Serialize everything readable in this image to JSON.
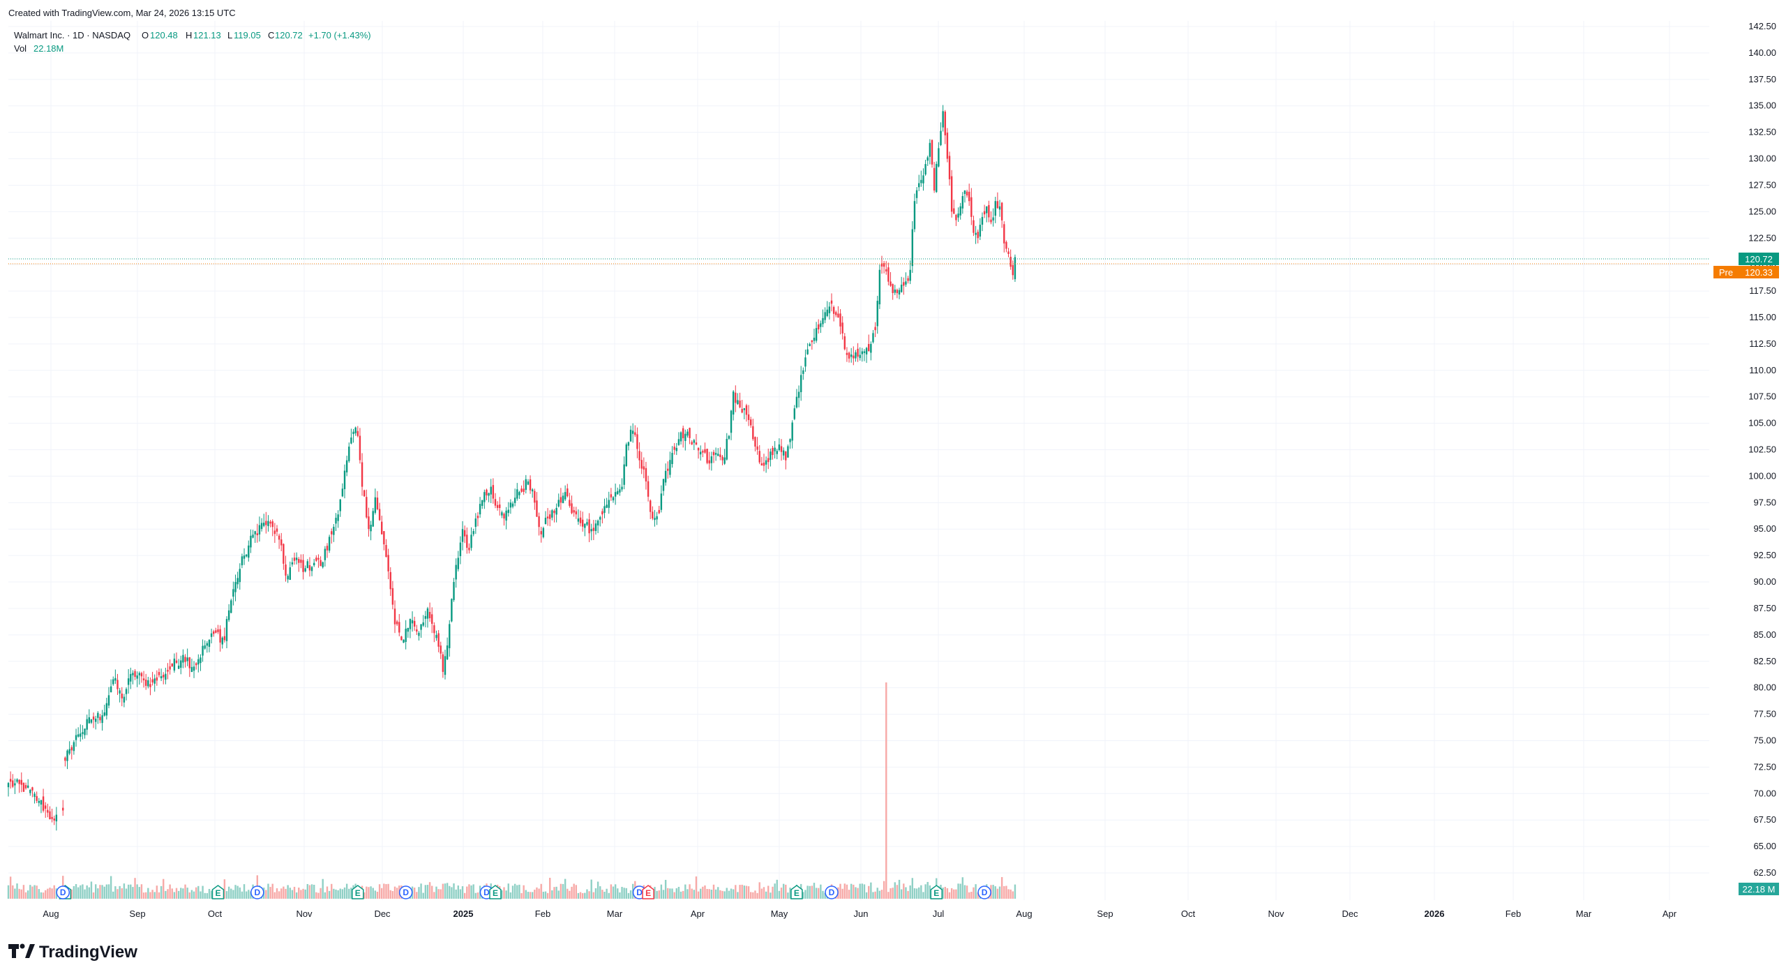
{
  "header": {
    "created": "Created with TradingView.com, Mar 24, 2026 13:15 UTC",
    "symbol": "Walmart Inc. · 1D · NASDAQ",
    "o_label": "O",
    "o_value": "120.48",
    "h_label": "H",
    "h_value": "121.13",
    "l_label": "L",
    "l_value": "119.05",
    "c_label": "C",
    "c_value": "120.72",
    "change": "+1.70 (+1.43%)",
    "vol_label": "Vol",
    "vol_value": "22.18M"
  },
  "branding": {
    "logo_text": "TradingView"
  },
  "price_labels": {
    "last": "120.72",
    "pre_tag": "Pre",
    "pre": "120.33",
    "volume": "22.18 M"
  },
  "colors": {
    "up": "#089981",
    "down": "#f23645",
    "up_volume": "#8fd0c5",
    "down_volume": "#f7a9a7",
    "pre": "#f57c00",
    "grid": "#f0f3fa",
    "dividend": "#2962ff"
  },
  "chart_data": {
    "type": "candlestick",
    "title": "Walmart Inc. · 1D · NASDAQ",
    "y_ticks": [
      "62.50",
      "65.00",
      "67.50",
      "70.00",
      "72.50",
      "75.00",
      "77.50",
      "80.00",
      "82.50",
      "85.00",
      "87.50",
      "90.00",
      "92.50",
      "95.00",
      "97.50",
      "100.00",
      "102.50",
      "105.00",
      "107.50",
      "110.00",
      "112.50",
      "115.00",
      "117.50",
      "120.00",
      "122.50",
      "125.00",
      "127.50",
      "130.00",
      "132.50",
      "135.00",
      "137.50",
      "140.00",
      "142.50"
    ],
    "ylim": [
      62.5,
      142.5
    ],
    "x_ticks": [
      {
        "label": "Aug",
        "bold": false
      },
      {
        "label": "Sep",
        "bold": false
      },
      {
        "label": "Oct",
        "bold": false
      },
      {
        "label": "Nov",
        "bold": false
      },
      {
        "label": "Dec",
        "bold": false
      },
      {
        "label": "2025",
        "bold": true
      },
      {
        "label": "Feb",
        "bold": false
      },
      {
        "label": "Mar",
        "bold": false
      },
      {
        "label": "Apr",
        "bold": false
      },
      {
        "label": "May",
        "bold": false
      },
      {
        "label": "Jun",
        "bold": false
      },
      {
        "label": "Jul",
        "bold": false
      },
      {
        "label": "Aug",
        "bold": false
      },
      {
        "label": "Sep",
        "bold": false
      },
      {
        "label": "Oct",
        "bold": false
      },
      {
        "label": "Nov",
        "bold": false
      },
      {
        "label": "Dec",
        "bold": false
      },
      {
        "label": "2026",
        "bold": true
      },
      {
        "label": "Feb",
        "bold": false
      },
      {
        "label": "Mar",
        "bold": false
      },
      {
        "label": "Apr",
        "bold": false
      }
    ],
    "anchors": [
      [
        0,
        71.0
      ],
      [
        8,
        70.5
      ],
      [
        14,
        69.3
      ],
      [
        18,
        68.2
      ],
      [
        20,
        67.6
      ],
      [
        22,
        68.0
      ],
      [
        25,
        68.4
      ],
      [
        26,
        73.1
      ],
      [
        28,
        74.2
      ],
      [
        32,
        75.6
      ],
      [
        38,
        77.0
      ],
      [
        43,
        77.4
      ],
      [
        48,
        80.8
      ],
      [
        52,
        79.0
      ],
      [
        57,
        81.4
      ],
      [
        62,
        80.7
      ],
      [
        66,
        80.5
      ],
      [
        70,
        81.1
      ],
      [
        75,
        82.0
      ],
      [
        80,
        83.1
      ],
      [
        85,
        82.0
      ],
      [
        90,
        84.0
      ],
      [
        95,
        85.2
      ],
      [
        99,
        84.5
      ],
      [
        100,
        86.5
      ],
      [
        104,
        90.0
      ],
      [
        108,
        92.5
      ],
      [
        113,
        94.8
      ],
      [
        117,
        95.6
      ],
      [
        121,
        95.2
      ],
      [
        124,
        94.0
      ],
      [
        127,
        90.6
      ],
      [
        131,
        92.0
      ],
      [
        136,
        91.3
      ],
      [
        141,
        92.0
      ],
      [
        143,
        91.5
      ],
      [
        148,
        94.5
      ],
      [
        152,
        97.8
      ],
      [
        155,
        101.5
      ],
      [
        158,
        104.2
      ],
      [
        160,
        103.8
      ],
      [
        162,
        99.0
      ],
      [
        165,
        95.0
      ],
      [
        168,
        98.0
      ],
      [
        171,
        94.5
      ],
      [
        174,
        91.0
      ],
      [
        177,
        86.0
      ],
      [
        180,
        84.5
      ],
      [
        184,
        86.5
      ],
      [
        188,
        85.2
      ],
      [
        192,
        87.5
      ],
      [
        196,
        85.0
      ],
      [
        199,
        81.5
      ],
      [
        201,
        84.0
      ],
      [
        204,
        90.0
      ],
      [
        208,
        95.0
      ],
      [
        211,
        93.0
      ],
      [
        214,
        96.0
      ],
      [
        218,
        98.5
      ],
      [
        221,
        99.0
      ],
      [
        224,
        97.0
      ],
      [
        227,
        96.0
      ],
      [
        230,
        97.5
      ],
      [
        234,
        98.5
      ],
      [
        238,
        99.5
      ],
      [
        241,
        97.5
      ],
      [
        244,
        94.5
      ],
      [
        247,
        96.0
      ],
      [
        251,
        97.0
      ],
      [
        255,
        98.5
      ],
      [
        258,
        96.5
      ],
      [
        261,
        96.0
      ],
      [
        264,
        95.5
      ],
      [
        267,
        95.0
      ],
      [
        270,
        95.8
      ],
      [
        274,
        97.3
      ],
      [
        278,
        98.5
      ],
      [
        281,
        99.0
      ],
      [
        283,
        103.0
      ],
      [
        286,
        104.3
      ],
      [
        289,
        101.5
      ],
      [
        292,
        99.5
      ],
      [
        295,
        96.0
      ],
      [
        298,
        96.5
      ],
      [
        301,
        100.5
      ],
      [
        304,
        102.2
      ],
      [
        307,
        103.5
      ],
      [
        310,
        104.0
      ],
      [
        313,
        103.0
      ],
      [
        317,
        102.3
      ],
      [
        321,
        101.2
      ],
      [
        324,
        102.2
      ],
      [
        327,
        101.5
      ],
      [
        330,
        103.8
      ],
      [
        332,
        108.0
      ],
      [
        335,
        106.5
      ],
      [
        338,
        105.8
      ],
      [
        341,
        103.5
      ],
      [
        344,
        101.3
      ],
      [
        347,
        101.5
      ],
      [
        350,
        102.0
      ],
      [
        353,
        103.0
      ],
      [
        356,
        101.5
      ],
      [
        358,
        103.5
      ],
      [
        361,
        107.5
      ],
      [
        364,
        110.0
      ],
      [
        367,
        112.5
      ],
      [
        370,
        114.0
      ],
      [
        374,
        115.5
      ],
      [
        377,
        116.3
      ],
      [
        380,
        115.0
      ],
      [
        383,
        112.0
      ],
      [
        386,
        111.5
      ],
      [
        389,
        111.3
      ],
      [
        392,
        111.8
      ],
      [
        395,
        112.5
      ],
      [
        397,
        113.8
      ],
      [
        399,
        119.5
      ],
      [
        401,
        119.8
      ],
      [
        404,
        118.0
      ],
      [
        407,
        117.3
      ],
      [
        410,
        118.0
      ],
      [
        413,
        119.5
      ],
      [
        415,
        126.0
      ],
      [
        418,
        128.0
      ],
      [
        420,
        129.5
      ],
      [
        422,
        131.5
      ],
      [
        424,
        127.0
      ],
      [
        426,
        131.0
      ],
      [
        428,
        134.5
      ],
      [
        430,
        130.0
      ],
      [
        432,
        125.0
      ],
      [
        434,
        124.2
      ],
      [
        436,
        125.5
      ],
      [
        438,
        127.0
      ],
      [
        440,
        126.0
      ],
      [
        442,
        123.0
      ],
      [
        444,
        122.5
      ],
      [
        446,
        124.5
      ],
      [
        448,
        125.5
      ],
      [
        450,
        124.0
      ],
      [
        452,
        126.0
      ],
      [
        454,
        125.5
      ],
      [
        456,
        122.0
      ],
      [
        458,
        121.0
      ],
      [
        460,
        119.0
      ],
      [
        461,
        120.7
      ]
    ],
    "spike_volume_index": 402,
    "events": [
      {
        "type": "earnings",
        "label": "E",
        "index": 26,
        "style": "up"
      },
      {
        "type": "dividend",
        "label": "D",
        "index": 25,
        "style": "div"
      },
      {
        "type": "earnings",
        "label": "E",
        "index": 96,
        "style": "up"
      },
      {
        "type": "dividend",
        "label": "D",
        "index": 114,
        "style": "div"
      },
      {
        "type": "earnings",
        "label": "E",
        "index": 160,
        "style": "up"
      },
      {
        "type": "dividend",
        "label": "D",
        "index": 182,
        "style": "div"
      },
      {
        "type": "dividend",
        "label": "D",
        "index": 219,
        "style": "div"
      },
      {
        "type": "earnings",
        "label": "E",
        "index": 223,
        "style": "up"
      },
      {
        "type": "dividend",
        "label": "D",
        "index": 289,
        "style": "div"
      },
      {
        "type": "earnings",
        "label": "E",
        "index": 293,
        "style": "down"
      },
      {
        "type": "earnings",
        "label": "E",
        "index": 361,
        "style": "up"
      },
      {
        "type": "dividend",
        "label": "D",
        "index": 377,
        "style": "div"
      },
      {
        "type": "earnings",
        "label": "E",
        "index": 425,
        "style": "up"
      },
      {
        "type": "dividend",
        "label": "D",
        "index": 447,
        "style": "div"
      }
    ]
  }
}
